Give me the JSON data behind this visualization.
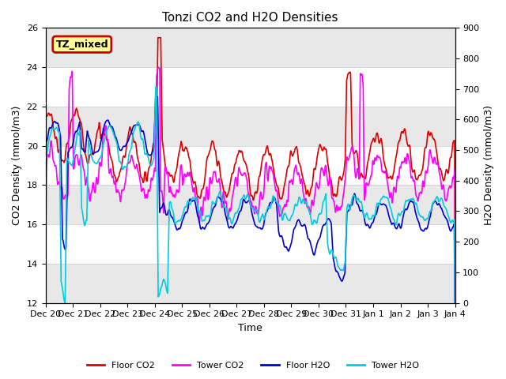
{
  "title": "Tonzi CO2 and H2O Densities",
  "xlabel": "Time",
  "ylabel_left": "CO2 Density (mmol/m3)",
  "ylabel_right": "H2O Density (mmol/m3)",
  "ylim_left": [
    12,
    26
  ],
  "ylim_right": [
    0,
    900
  ],
  "annotation_text": "TZ_mixed",
  "annotation_bg": "#ffff99",
  "annotation_border": "#cc0000",
  "tick_labels": [
    "Dec 20",
    "Dec 21",
    "Dec 22",
    "Dec 23",
    "Dec 24",
    "Dec 25",
    "Dec 26",
    "Dec 27",
    "Dec 28",
    "Dec 29",
    "Dec 30",
    "Dec 31",
    "Jan 1",
    "Jan 2",
    "Jan 3",
    "Jan 4"
  ],
  "colors": {
    "floor_co2": "#dd0000",
    "tower_co2": "#ff00ff",
    "floor_h2o": "#0000cc",
    "tower_h2o": "#00ccdd"
  },
  "legend_labels": [
    "Floor CO2",
    "Tower CO2",
    "Floor H2O",
    "Tower H2O"
  ],
  "background_color": "#ffffff",
  "alternating_band_color": "#e8e8e8",
  "n_days": 15,
  "points_per_day": 96,
  "seed": 7
}
